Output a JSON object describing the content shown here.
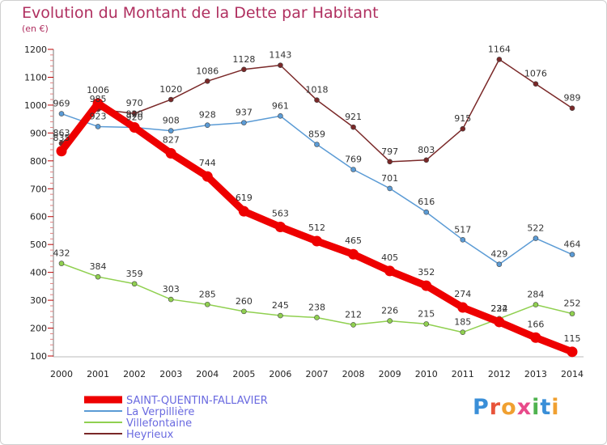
{
  "header": {
    "title": "Evolution du Montant de la Dette par Habitant",
    "subtitle": "(en €)"
  },
  "logo": {
    "text": "Proxiti",
    "colors": [
      "#3a8fd8",
      "#e8543a",
      "#f0a030",
      "#e84a8a",
      "#4fb34f",
      "#3a8fd8",
      "#f0a030"
    ]
  },
  "chart_data": {
    "type": "line",
    "x": [
      "2000",
      "2001",
      "2002",
      "2003",
      "2004",
      "2005",
      "2006",
      "2007",
      "2008",
      "2009",
      "2010",
      "2011",
      "2012",
      "2013",
      "2014"
    ],
    "yticks": [
      100,
      200,
      300,
      400,
      500,
      600,
      700,
      800,
      900,
      1000,
      1100,
      1200
    ],
    "ylim": [
      100,
      1200
    ],
    "grid": false,
    "legend_position": "bottom-left",
    "series": [
      {
        "name": "SAINT-QUENTIN-FALLAVIER",
        "color": "#ee0000",
        "width": 9,
        "marker": 13,
        "values": [
          835,
          1006,
          920,
          827,
          744,
          619,
          563,
          512,
          465,
          405,
          352,
          274,
          222,
          166,
          115
        ],
        "labels": [
          "835",
          "1006",
          "920",
          "827",
          "744",
          "619",
          "563",
          "512",
          "465",
          "405",
          "352",
          "274",
          "222",
          "166",
          "115"
        ]
      },
      {
        "name": "La Verpillière",
        "color": "#5b9bd5",
        "width": 1.5,
        "marker": 6,
        "values": [
          969,
          923,
          920,
          908,
          928,
          937,
          961,
          859,
          769,
          701,
          616,
          517,
          429,
          522,
          464
        ],
        "labels": [
          "969",
          "923",
          "920",
          "908",
          "928",
          "937",
          "961",
          "859",
          "769",
          "701",
          "616",
          "517",
          "429",
          "522",
          "464"
        ]
      },
      {
        "name": "Villefontaine",
        "color": "#90d050",
        "width": 1.5,
        "marker": 6,
        "values": [
          432,
          384,
          359,
          303,
          285,
          260,
          245,
          238,
          212,
          226,
          215,
          185,
          234,
          284,
          252
        ],
        "labels": [
          "432",
          "384",
          "359",
          "303",
          "285",
          "260",
          "245",
          "238",
          "212",
          "226",
          "215",
          "185",
          "234",
          "284",
          "252"
        ]
      },
      {
        "name": "Heyrieux",
        "color": "#7a2828",
        "width": 1.5,
        "marker": 6,
        "values": [
          863,
          985,
          970,
          1020,
          1086,
          1128,
          1143,
          1018,
          921,
          797,
          803,
          915,
          1164,
          1076,
          989
        ],
        "labels": [
          "863",
          "985",
          "970",
          "1020",
          "1086",
          "1128",
          "1143",
          "1018",
          "921",
          "797",
          "803",
          "915",
          "1164",
          "1076",
          "989"
        ]
      }
    ]
  }
}
